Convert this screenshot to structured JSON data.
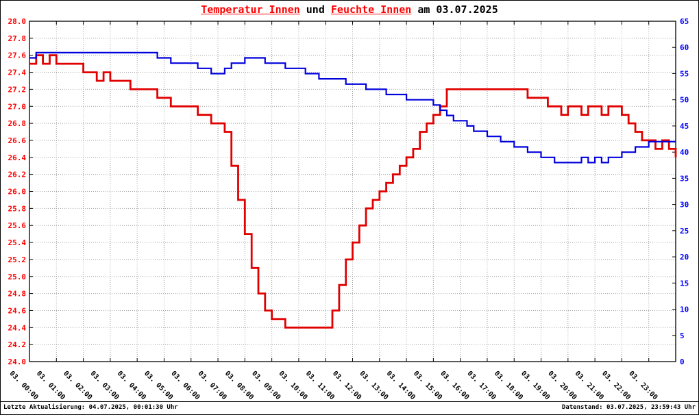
{
  "title": {
    "parts": [
      {
        "text": "Temperatur Innen",
        "color": "#ff0000",
        "link": true
      },
      {
        "text": " und ",
        "color": "#000000",
        "link": false
      },
      {
        "text": "Feuchte Innen",
        "color": "#ff0000",
        "link": true
      },
      {
        "text": " am 03.07.2025",
        "color": "#000000",
        "link": false
      }
    ]
  },
  "footer": {
    "left": "Letzte Aktualisierung: 04.07.2025, 00:01:30 Uhr",
    "right": "Datenstand: 03.07.2025, 23:59:43 Uhr"
  },
  "chart_data": {
    "type": "line",
    "title": "Temperatur Innen und Feuchte Innen am 03.07.2025",
    "grid": {
      "on": true,
      "color": "#a0a0a0"
    },
    "x_axis": {
      "min": 0,
      "max": 24,
      "tick_labels": [
        "03. 00:00",
        "03. 01:00",
        "03. 02:00",
        "03. 03:00",
        "03. 04:00",
        "03. 05:00",
        "03. 06:00",
        "03. 07:00",
        "03. 08:00",
        "03. 09:00",
        "03. 10:00",
        "03. 11:00",
        "03. 12:00",
        "03. 13:00",
        "03. 14:00",
        "03. 15:00",
        "03. 16:00",
        "03. 17:00",
        "03. 18:00",
        "03. 19:00",
        "03. 20:00",
        "03. 21:00",
        "03. 22:00",
        "03. 23:00"
      ]
    },
    "left_axis": {
      "min": 24.0,
      "max": 28.0,
      "step": 0.2,
      "label_color": "#ff0000",
      "tick_labels": [
        "28.0",
        "27.8",
        "27.6",
        "27.4",
        "27.2",
        "27.0",
        "26.8",
        "26.6",
        "26.4",
        "26.2",
        "26.0",
        "25.8",
        "25.6",
        "25.4",
        "25.2",
        "25.0",
        "24.8",
        "24.6",
        "24.4",
        "24.2",
        "24.0"
      ]
    },
    "right_axis": {
      "min": 0,
      "max": 65,
      "step": 5,
      "label_color": "#0000ff",
      "tick_labels": [
        "65",
        "60",
        "55",
        "50",
        "45",
        "40",
        "35",
        "30",
        "25",
        "20",
        "15",
        "10",
        "5",
        "0"
      ]
    },
    "series": [
      {
        "key": "temperatur-innen",
        "name": "Temperatur Innen",
        "axis": "left",
        "color": "#e00000",
        "stroke_width": 2.8,
        "x_start": 0,
        "x_step": 0.25,
        "values": [
          27.5,
          27.6,
          27.5,
          27.6,
          27.5,
          27.5,
          27.5,
          27.5,
          27.4,
          27.4,
          27.3,
          27.4,
          27.3,
          27.3,
          27.3,
          27.2,
          27.2,
          27.2,
          27.2,
          27.1,
          27.1,
          27.0,
          27.0,
          27.0,
          27.0,
          26.9,
          26.9,
          26.8,
          26.8,
          26.7,
          26.3,
          25.9,
          25.5,
          25.1,
          24.8,
          24.6,
          24.5,
          24.5,
          24.4,
          24.4,
          24.4,
          24.4,
          24.4,
          24.4,
          24.4,
          24.6,
          24.9,
          25.2,
          25.4,
          25.6,
          25.8,
          25.9,
          26.0,
          26.1,
          26.2,
          26.3,
          26.4,
          26.5,
          26.7,
          26.8,
          26.9,
          27.0,
          27.2,
          27.2,
          27.2,
          27.2,
          27.2,
          27.2,
          27.2,
          27.2,
          27.2,
          27.2,
          27.2,
          27.2,
          27.1,
          27.1,
          27.1,
          27.0,
          27.0,
          26.9,
          27.0,
          27.0,
          26.9,
          27.0,
          27.0,
          26.9,
          27.0,
          27.0,
          26.9,
          26.8,
          26.7,
          26.6,
          26.6,
          26.5,
          26.6,
          26.5,
          26.4
        ]
      },
      {
        "key": "feuchte-innen",
        "name": "Feuchte Innen",
        "axis": "right",
        "color": "#0000dd",
        "stroke_width": 2.2,
        "x_start": 0,
        "x_step": 0.25,
        "values": [
          58,
          59,
          59,
          59,
          59,
          59,
          59,
          59,
          59,
          59,
          59,
          59,
          59,
          59,
          59,
          59,
          59,
          59,
          59,
          58,
          58,
          57,
          57,
          57,
          57,
          56,
          56,
          55,
          55,
          56,
          57,
          57,
          58,
          58,
          58,
          57,
          57,
          57,
          56,
          56,
          56,
          55,
          55,
          54,
          54,
          54,
          54,
          53,
          53,
          53,
          52,
          52,
          52,
          51,
          51,
          51,
          50,
          50,
          50,
          50,
          49,
          48,
          47,
          46,
          46,
          45,
          44,
          44,
          43,
          43,
          42,
          42,
          41,
          41,
          40,
          40,
          39,
          39,
          38,
          38,
          38,
          38,
          39,
          38,
          39,
          38,
          39,
          39,
          40,
          40,
          41,
          41,
          42,
          42,
          42,
          42,
          42
        ]
      }
    ]
  }
}
